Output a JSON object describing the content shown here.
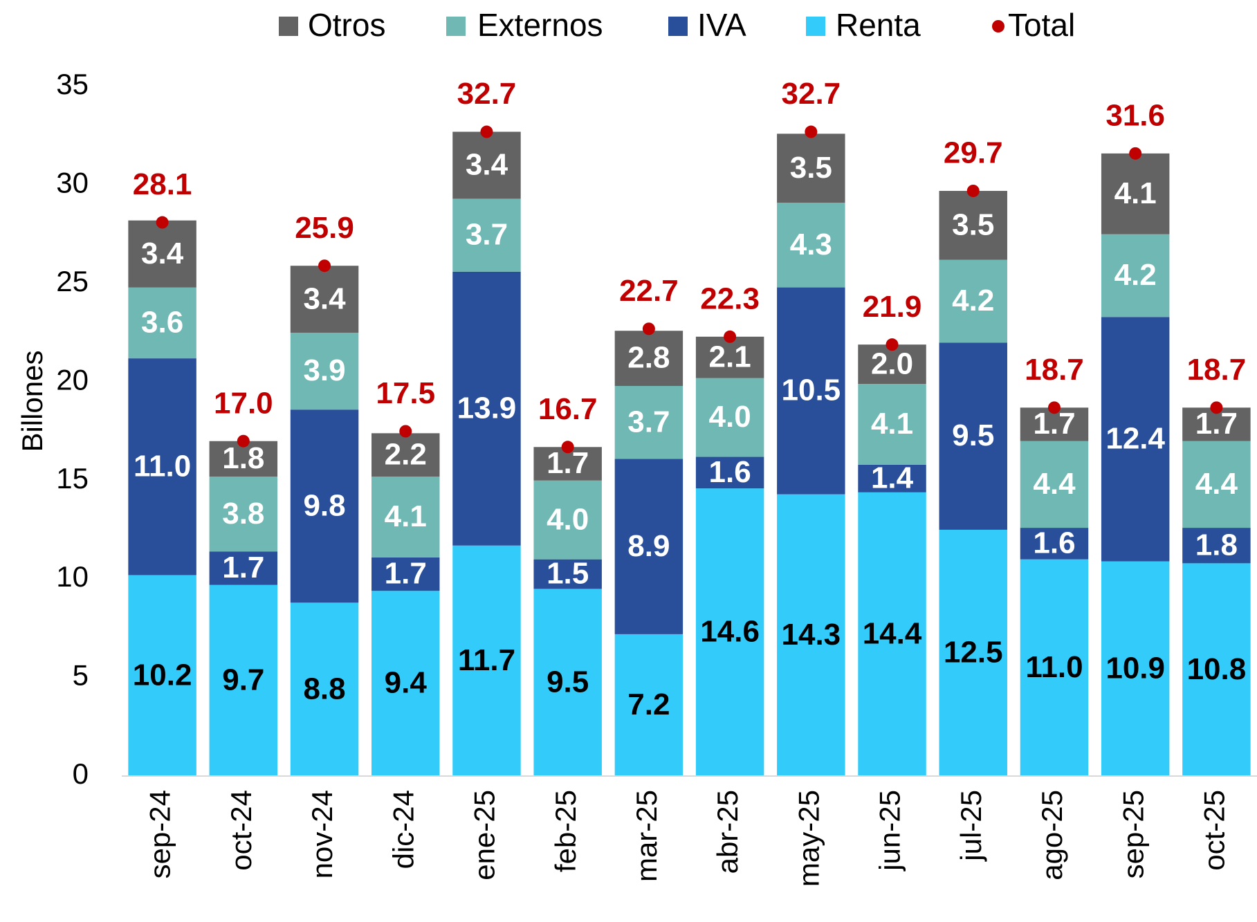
{
  "chart_data": {
    "type": "stacked-bar",
    "categories": [
      "sep-24",
      "oct-24",
      "nov-24",
      "dic-24",
      "ene-25",
      "feb-25",
      "mar-25",
      "abr-25",
      "may-25",
      "jun-25",
      "jul-25",
      "ago-25",
      "sep-25",
      "oct-25"
    ],
    "y_label": "Billones",
    "ylim": [
      0,
      35
    ],
    "yticks": [
      0,
      5,
      10,
      15,
      20,
      25,
      30,
      35
    ],
    "grid": false,
    "legend_order": [
      "Otros",
      "Externos",
      "IVA",
      "Renta",
      "Total"
    ],
    "series": [
      {
        "name": "Renta",
        "color": "#33ccfa",
        "label_color": "#000000",
        "values": [
          10.2,
          9.7,
          8.8,
          9.4,
          11.7,
          9.5,
          7.2,
          14.6,
          14.3,
          14.4,
          12.5,
          11.0,
          10.9,
          10.8
        ],
        "value_labels": [
          "10.2",
          "9.7",
          "8.8",
          "9.4",
          "11.7",
          "9.5",
          "7.2",
          "14.6",
          "14.3",
          "14.4",
          "12.5",
          "11.0",
          "10.9",
          "10.8"
        ]
      },
      {
        "name": "IVA",
        "color": "#2a4f9a",
        "label_color": "#ffffff",
        "values": [
          11.0,
          1.7,
          9.8,
          1.7,
          13.9,
          1.5,
          8.9,
          1.6,
          10.5,
          1.4,
          9.5,
          1.6,
          12.4,
          1.8
        ],
        "value_labels": [
          "11.0",
          "1.7",
          "9.8",
          "1.7",
          "13.9",
          "1.5",
          "8.9",
          "1.6",
          "10.5",
          "1.4",
          "9.5",
          "1.6",
          "12.4",
          "1.8"
        ]
      },
      {
        "name": "Externos",
        "color": "#70b8b4",
        "label_color": "#ffffff",
        "values": [
          3.6,
          3.8,
          3.9,
          4.1,
          3.7,
          4.0,
          3.7,
          4.0,
          4.3,
          4.1,
          4.2,
          4.4,
          4.2,
          4.4
        ],
        "value_labels": [
          "3.6",
          "3.8",
          "3.9",
          "4.1",
          "3.7",
          "4.0",
          "3.7",
          "4.0",
          "4.3",
          "4.1",
          "4.2",
          "4.4",
          "4.2",
          "4.4"
        ]
      },
      {
        "name": "Otros",
        "color": "#636363",
        "label_color": "#ffffff",
        "values": [
          3.4,
          1.8,
          3.4,
          2.2,
          3.4,
          1.7,
          2.8,
          2.1,
          3.5,
          2.0,
          3.5,
          1.7,
          4.1,
          1.7
        ],
        "value_labels": [
          "3.4",
          "1.8",
          "3.4",
          "2.2",
          "3.4",
          "1.7",
          "2.8",
          "2.1",
          "3.5",
          "2.0",
          "3.5",
          "1.7",
          "4.1",
          "1.7"
        ]
      }
    ],
    "total": {
      "name": "Total",
      "color": "#c00000",
      "values": [
        28.1,
        17.0,
        25.9,
        17.5,
        32.7,
        16.7,
        22.7,
        22.3,
        32.7,
        21.9,
        29.7,
        18.7,
        31.6,
        18.7
      ],
      "value_labels": [
        "28.1",
        "17.0",
        "25.9",
        "17.5",
        "32.7",
        "16.7",
        "22.7",
        "22.3",
        "32.7",
        "21.9",
        "29.7",
        "18.7",
        "31.6",
        "18.7"
      ]
    }
  }
}
